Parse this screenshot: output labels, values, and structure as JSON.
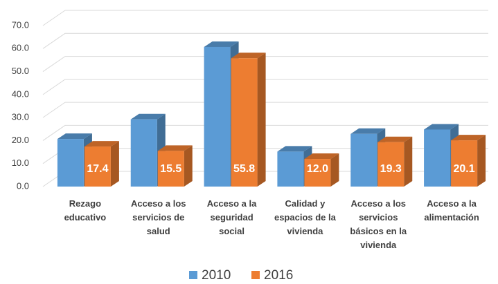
{
  "chart_data": {
    "type": "bar3d",
    "categories": [
      "Rezago educativo",
      "Acceso a los servicios de salud",
      "Acceso a la seguridad social",
      "Calidad y espacios de la vivienda",
      "Acceso a los servicios básicos en la vivienda",
      "Acceso a la alimentación"
    ],
    "series": [
      {
        "name": "2010",
        "color": "#5b9bd5",
        "values": [
          20.7,
          29.2,
          60.7,
          15.2,
          22.9,
          24.8
        ]
      },
      {
        "name": "2016",
        "color": "#ed7d31",
        "values": [
          17.4,
          15.5,
          55.8,
          12.0,
          19.3,
          20.1
        ],
        "value_labels": [
          "17.4",
          "15.5",
          "55.8",
          "12.0",
          "19.3",
          "20.1"
        ]
      }
    ],
    "ylim": [
      0,
      70
    ],
    "yticks": [
      {
        "value": 0,
        "label": "0.0"
      },
      {
        "value": 10,
        "label": "10.0"
      },
      {
        "value": 20,
        "label": "20.0"
      },
      {
        "value": 30,
        "label": "30.0"
      },
      {
        "value": 40,
        "label": "40.0"
      },
      {
        "value": 50,
        "label": "50.0"
      },
      {
        "value": 60,
        "label": "60.0"
      },
      {
        "value": 70,
        "label": "70.0"
      }
    ],
    "grid": true,
    "legend": "bottom"
  }
}
